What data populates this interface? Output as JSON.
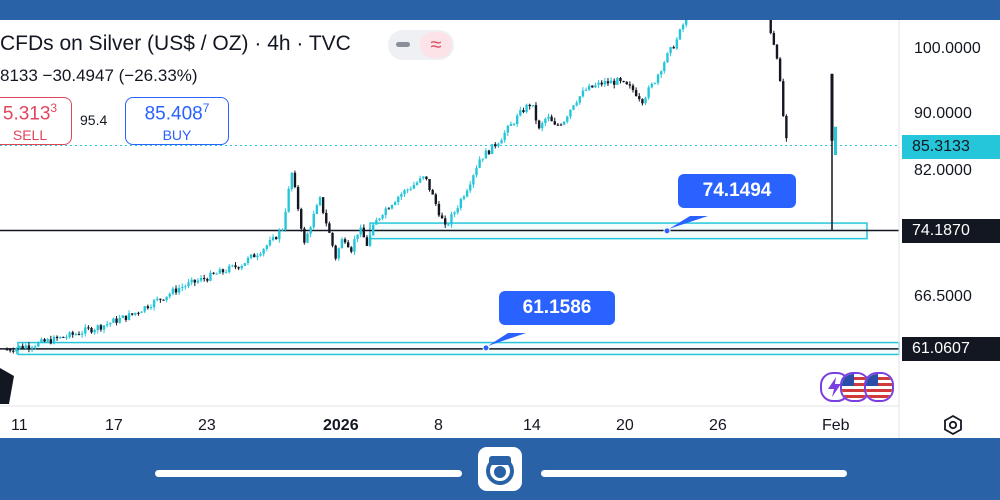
{
  "header": {
    "title": "CFDs on Silver (US$ / OZ) · 4h · TVC",
    "stats": "8133  −30.4947 (−26.33%)"
  },
  "trade": {
    "sell_price": "5.313",
    "sell_price_small": "3",
    "sell_label": "SELL",
    "spread": "95.4",
    "buy_price": "85.408",
    "buy_price_small": "7",
    "buy_label": "BUY"
  },
  "callouts": [
    {
      "label": "74.1494"
    },
    {
      "label": "61.1586"
    }
  ],
  "price_tags": {
    "current": "85.3133",
    "level_upper": "74.1870",
    "level_lower": "61.0607"
  },
  "colors": {
    "up": "#26c6da",
    "down": "#131722",
    "accent": "#2962ff",
    "sell": "#e0465a",
    "zone": "#26c6da",
    "current_tag": "#26c6da"
  },
  "chart_data": {
    "type": "candlestick",
    "title": "CFDs on Silver (US$ / OZ) · 4h · TVC",
    "xlabel": "",
    "ylabel": "",
    "y_axis_labels": [
      "100.0000",
      "90.0000",
      "82.0000",
      "66.5000"
    ],
    "x_axis_labels": [
      "11",
      "17",
      "23",
      "2026",
      "8",
      "14",
      "20",
      "26",
      "Feb"
    ],
    "y_scale": "log",
    "grid": false,
    "current_price": 85.3133,
    "levels": [
      {
        "price": 74.187,
        "zone": [
          73.2,
          75.1
        ],
        "callout": 74.1494
      },
      {
        "price": 61.0607,
        "zone": [
          60.5,
          61.7
        ],
        "callout": 61.1586
      }
    ],
    "price_path": [
      [
        0,
        61.0
      ],
      [
        2,
        61.6
      ],
      [
        4,
        62.4
      ],
      [
        6,
        63.4
      ],
      [
        8,
        64.6
      ],
      [
        9,
        65.6
      ],
      [
        10,
        66.5
      ],
      [
        11,
        67.5
      ],
      [
        13,
        68.8
      ],
      [
        15,
        70.2
      ],
      [
        16,
        71.5
      ],
      [
        17,
        73.0
      ],
      [
        17.6,
        74.5
      ],
      [
        18.2,
        81.5
      ],
      [
        18.6,
        77.0
      ],
      [
        19.0,
        72.5
      ],
      [
        19.5,
        75.5
      ],
      [
        20.0,
        78.0
      ],
      [
        20.5,
        74.5
      ],
      [
        21.0,
        71.0
      ],
      [
        21.5,
        73.5
      ],
      [
        22.0,
        72.0
      ],
      [
        22.5,
        74.5
      ],
      [
        23.0,
        72.5
      ],
      [
        23.5,
        75.0
      ],
      [
        24,
        76.5
      ],
      [
        25,
        78.5
      ],
      [
        26,
        80.0
      ],
      [
        26.7,
        81.0
      ],
      [
        27.3,
        78.0
      ],
      [
        28.0,
        74.5
      ],
      [
        28.6,
        76.5
      ],
      [
        29.5,
        80.0
      ],
      [
        30.2,
        83.5
      ],
      [
        31.0,
        85.0
      ],
      [
        31.6,
        86.5
      ],
      [
        32.3,
        88.5
      ],
      [
        33.0,
        90.5
      ],
      [
        33.5,
        91.5
      ],
      [
        34.0,
        87.5
      ],
      [
        34.5,
        89.5
      ],
      [
        35.0,
        88.0
      ],
      [
        35.6,
        89.0
      ],
      [
        36.2,
        91.5
      ],
      [
        37.0,
        93.5
      ],
      [
        38.0,
        94.5
      ],
      [
        39.0,
        94.8
      ],
      [
        40.0,
        93.5
      ],
      [
        40.6,
        92.0
      ],
      [
        41.3,
        94.5
      ],
      [
        42.0,
        98.0
      ],
      [
        42.8,
        101.5
      ],
      [
        43.5,
        106.0
      ],
      [
        44.2,
        110.0
      ],
      [
        45.0,
        114.0
      ],
      [
        45.6,
        118.0
      ],
      [
        46.0,
        120.0
      ],
      [
        47.0,
        121.0
      ],
      [
        48.0,
        115.0
      ],
      [
        48.8,
        103.0
      ],
      [
        49.2,
        99.0
      ],
      [
        49.5,
        92.0
      ],
      [
        49.75,
        86.0
      ],
      [
        50.0,
        85.3
      ]
    ],
    "days_range": [
      0,
      53
    ]
  }
}
